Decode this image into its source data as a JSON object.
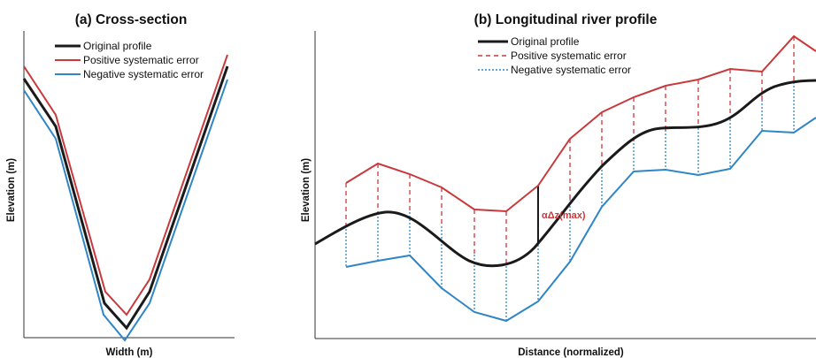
{
  "colors": {
    "original": "#1a1a1a",
    "positive": "#c8393c",
    "negative": "#2e86c7",
    "axis": "#333333"
  },
  "panel_a": {
    "title": "(a) Cross-section",
    "xlabel": "Width (m)",
    "ylabel": "Elevation (m)",
    "legend": [
      "Original profile",
      "Positive systematic error",
      "Negative systematic error"
    ]
  },
  "panel_b": {
    "title": "(b) Longitudinal river profile",
    "xlabel": "Distance (normalized)",
    "ylabel": "Elevation (m)",
    "legend": [
      "Original profile",
      "Positive systematic error",
      "Negative systematic error"
    ],
    "annotation": "αΔz(max)"
  }
}
